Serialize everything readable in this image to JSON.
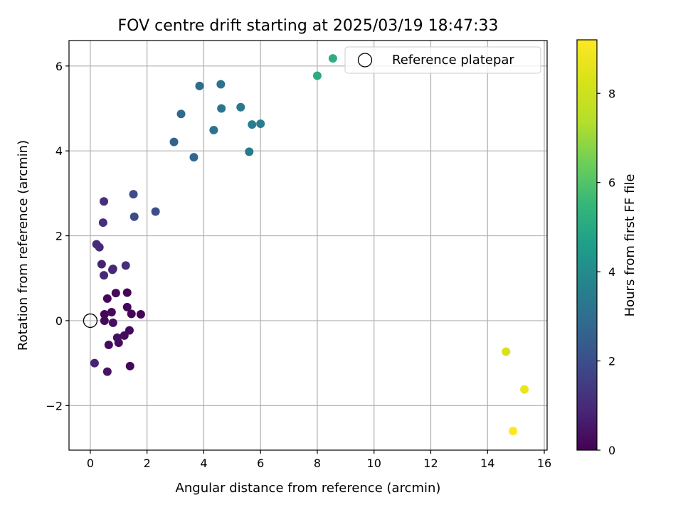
{
  "chart_data": {
    "type": "scatter",
    "title": "FOV centre drift starting at 2025/03/19 18:47:33",
    "xlabel": "Angular distance from reference (arcmin)",
    "ylabel": "Rotation from reference (arcmin)",
    "xlim": [
      -0.75,
      16.1
    ],
    "ylim": [
      -3.05,
      6.6
    ],
    "xticks": [
      0,
      2,
      4,
      6,
      8,
      10,
      12,
      14,
      16
    ],
    "yticks": [
      -2,
      0,
      2,
      4,
      6
    ],
    "grid": true,
    "legend": {
      "placement": "top-right",
      "entries": [
        "Reference platepar"
      ]
    },
    "reference_point": {
      "x": 0,
      "y": 0
    },
    "colorbar": {
      "label": "Hours from first FF file",
      "range": [
        0,
        9.2
      ],
      "ticks": [
        0,
        2,
        4,
        6,
        8
      ],
      "colormap": "viridis"
    },
    "points": [
      {
        "x": 0.5,
        "y": 0.15,
        "c": 0.1
      },
      {
        "x": 0.5,
        "y": 0.0,
        "c": 0.2
      },
      {
        "x": 0.6,
        "y": 0.52,
        "c": 0.15
      },
      {
        "x": 0.75,
        "y": 0.2,
        "c": 0.2
      },
      {
        "x": 0.8,
        "y": -0.05,
        "c": 0.3
      },
      {
        "x": 0.65,
        "y": -0.57,
        "c": 0.25
      },
      {
        "x": 0.9,
        "y": 0.65,
        "c": 0.2
      },
      {
        "x": 0.95,
        "y": -0.4,
        "c": 0.3
      },
      {
        "x": 1.0,
        "y": -0.52,
        "c": 0.3
      },
      {
        "x": 1.2,
        "y": -0.35,
        "c": 0.25
      },
      {
        "x": 1.3,
        "y": 0.32,
        "c": 0.15
      },
      {
        "x": 1.3,
        "y": 0.66,
        "c": 0.1
      },
      {
        "x": 1.38,
        "y": -0.23,
        "c": 0.2
      },
      {
        "x": 1.45,
        "y": 0.16,
        "c": 0.1
      },
      {
        "x": 1.78,
        "y": 0.15,
        "c": 0.05
      },
      {
        "x": 1.4,
        "y": -1.07,
        "c": 0.15
      },
      {
        "x": 0.6,
        "y": -1.2,
        "c": 0.45
      },
      {
        "x": 0.15,
        "y": -1.0,
        "c": 0.8
      },
      {
        "x": 0.4,
        "y": 1.33,
        "c": 0.8
      },
      {
        "x": 0.48,
        "y": 1.07,
        "c": 0.9
      },
      {
        "x": 0.78,
        "y": 1.2,
        "c": 0.9
      },
      {
        "x": 0.8,
        "y": 1.22,
        "c": 0.9
      },
      {
        "x": 1.25,
        "y": 1.3,
        "c": 1.1
      },
      {
        "x": 0.22,
        "y": 1.8,
        "c": 1.0
      },
      {
        "x": 0.32,
        "y": 1.73,
        "c": 1.0
      },
      {
        "x": 0.45,
        "y": 2.31,
        "c": 1.1
      },
      {
        "x": 0.48,
        "y": 2.81,
        "c": 1.1
      },
      {
        "x": 1.52,
        "y": 2.98,
        "c": 1.9
      },
      {
        "x": 1.55,
        "y": 2.45,
        "c": 1.9
      },
      {
        "x": 2.3,
        "y": 2.57,
        "c": 2.0
      },
      {
        "x": 2.95,
        "y": 4.21,
        "c": 2.6
      },
      {
        "x": 3.65,
        "y": 3.85,
        "c": 2.7
      },
      {
        "x": 3.2,
        "y": 4.87,
        "c": 2.8
      },
      {
        "x": 3.85,
        "y": 5.53,
        "c": 2.9
      },
      {
        "x": 4.35,
        "y": 4.49,
        "c": 3.1
      },
      {
        "x": 4.6,
        "y": 5.57,
        "c": 3.1
      },
      {
        "x": 4.62,
        "y": 5.0,
        "c": 3.2
      },
      {
        "x": 5.3,
        "y": 5.03,
        "c": 3.3
      },
      {
        "x": 5.6,
        "y": 3.98,
        "c": 3.4
      },
      {
        "x": 5.7,
        "y": 4.62,
        "c": 3.5
      },
      {
        "x": 6.0,
        "y": 4.64,
        "c": 3.5
      },
      {
        "x": 8.0,
        "y": 5.77,
        "c": 5.1
      },
      {
        "x": 8.55,
        "y": 6.18,
        "c": 5.2
      },
      {
        "x": 14.65,
        "y": -0.73,
        "c": 8.3
      },
      {
        "x": 15.3,
        "y": -1.62,
        "c": 8.7
      },
      {
        "x": 14.9,
        "y": -2.6,
        "c": 9.2
      }
    ]
  }
}
